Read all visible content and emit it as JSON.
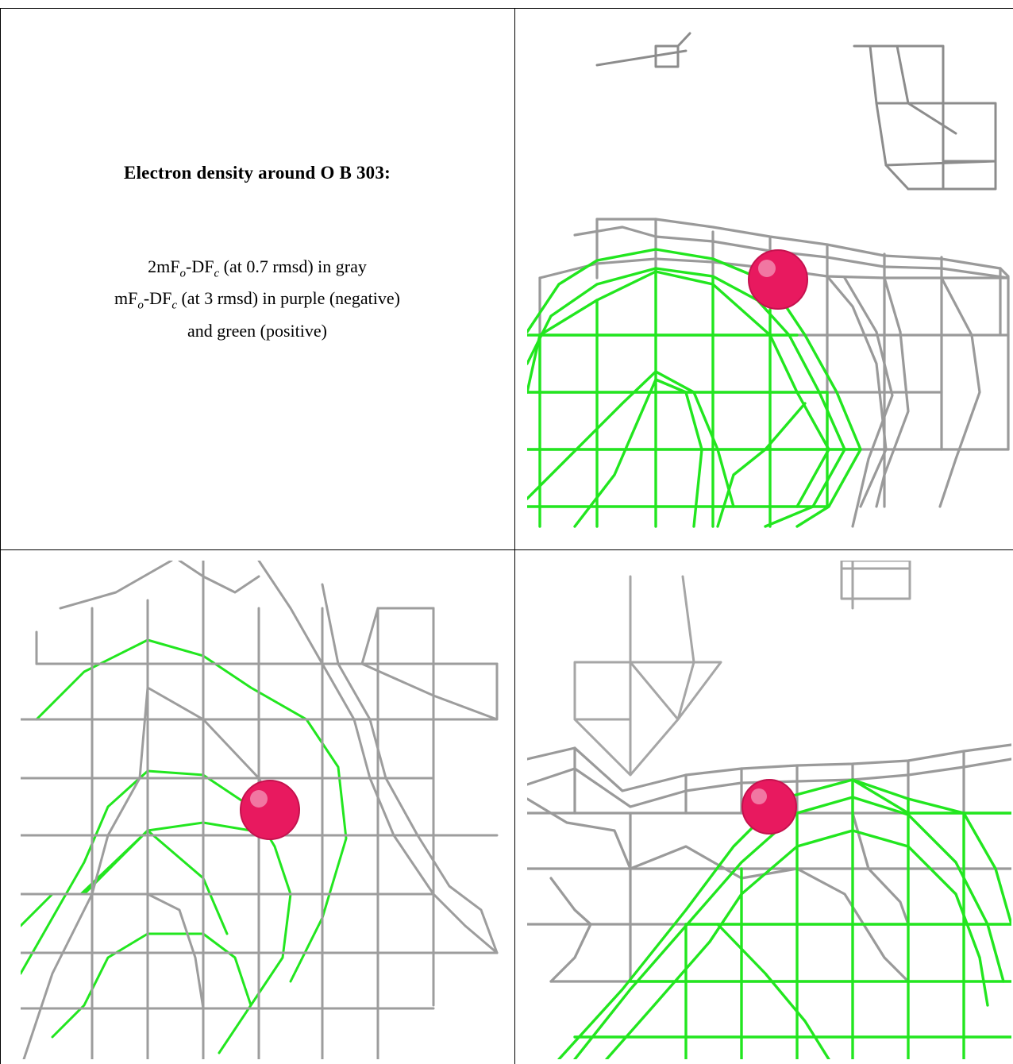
{
  "caption": {
    "title": "Electron density around O B 303:",
    "line1": {
      "lead": "2mF",
      "sub1": "o",
      "mid": "-DF",
      "sub2": "c",
      "tail": " (at 0.7 rmsd) in gray"
    },
    "line2": {
      "lead": "mF",
      "sub1": "o",
      "mid": "-DF",
      "sub2": "c",
      "tail": " (at 3 rmsd) in purple (negative)"
    },
    "line3": "and green (positive)"
  },
  "colors": {
    "map_2fofc": "#9a9a9a",
    "map_fofc_positive": "#22e61f",
    "atom": "#e8195f",
    "border": "#000000"
  },
  "panels": [
    {
      "id": "view-1",
      "atom": "O B 303"
    },
    {
      "id": "view-2",
      "atom": "O B 303"
    },
    {
      "id": "view-3",
      "atom": "O B 303"
    }
  ]
}
